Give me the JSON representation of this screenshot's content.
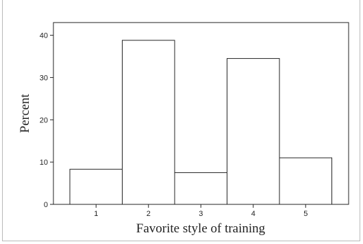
{
  "chart_data": {
    "type": "bar",
    "categories": [
      "1",
      "2",
      "3",
      "4",
      "5"
    ],
    "values": [
      8.3,
      38.8,
      7.5,
      34.5,
      11.0
    ],
    "xlabel": "Favorite style of training",
    "ylabel": "Percent",
    "ylim": [
      0,
      43
    ],
    "yticks": [
      0,
      10,
      20,
      30,
      40
    ],
    "grid": false,
    "bar_fill": "#ffffff",
    "bar_stroke": "#222222"
  }
}
